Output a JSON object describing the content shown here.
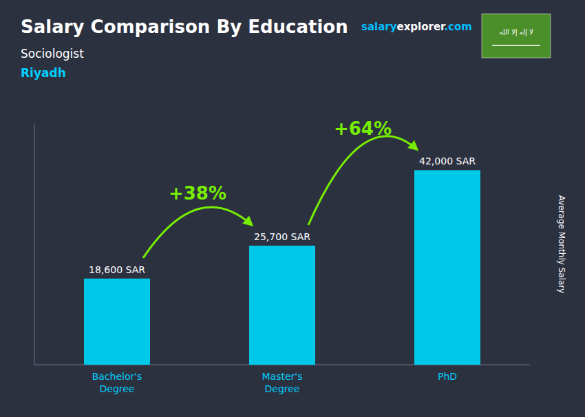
{
  "chart_data": {
    "type": "bar",
    "title": "Salary Comparison By Education",
    "subtitle": "Sociologist",
    "location": "Riyadh",
    "ylabel": "Average Monthly Salary",
    "categories": [
      "Bachelor's\nDegree",
      "Master's\nDegree",
      "PhD"
    ],
    "values": [
      18600,
      25700,
      42000
    ],
    "value_labels": [
      "18,600 SAR",
      "25,700 SAR",
      "42,000 SAR"
    ],
    "data_labels": true,
    "color": "#00C8E8",
    "ylim": [
      0,
      52000
    ],
    "grid": false,
    "tick_labels": "x",
    "annotations": [
      "+38%",
      "+64%"
    ],
    "website": [
      "salary",
      "explorer",
      ".com"
    ],
    "flag_text": "لا إله إلا الله"
  }
}
